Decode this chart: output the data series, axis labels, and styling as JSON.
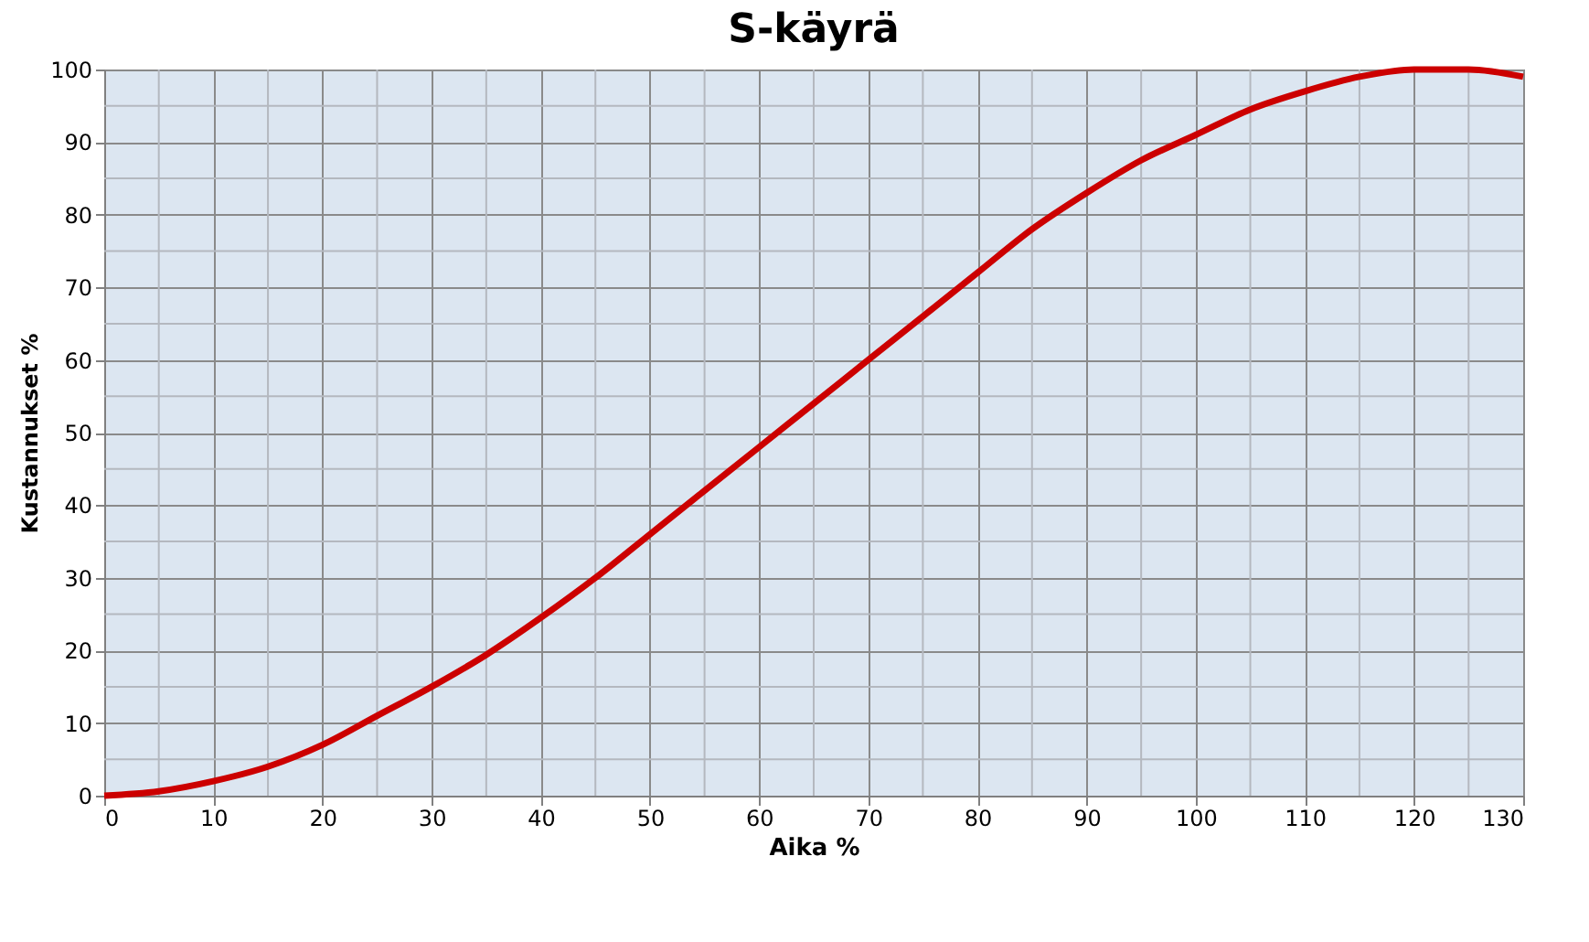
{
  "chart_data": {
    "type": "line",
    "title": "S-käyrä",
    "xlabel": "Aika %",
    "ylabel": "Kustannukset %",
    "x": [
      0,
      5,
      10,
      15,
      20,
      25,
      30,
      35,
      40,
      45,
      50,
      55,
      60,
      65,
      70,
      75,
      80,
      85,
      90,
      95,
      100,
      105,
      110,
      115,
      120,
      125,
      130
    ],
    "series": [
      {
        "color": "#cc0000",
        "values": [
          0,
          0.6,
          2,
          4,
          7,
          11,
          15,
          19.4,
          24.5,
          30,
          36,
          42,
          48,
          54,
          60,
          66,
          72,
          78,
          83,
          87.5,
          91,
          94.5,
          97,
          99,
          100,
          100,
          99
        ]
      }
    ],
    "xlim": [
      0,
      130
    ],
    "xticks": [
      0,
      10,
      20,
      30,
      40,
      50,
      60,
      70,
      80,
      90,
      100,
      110,
      120,
      130
    ],
    "ylim": [
      0,
      100
    ],
    "yticks": [
      0,
      10,
      20,
      30,
      40,
      50,
      60,
      70,
      80,
      90,
      100
    ],
    "grid": true,
    "marker": "none",
    "line_style": "solid"
  }
}
